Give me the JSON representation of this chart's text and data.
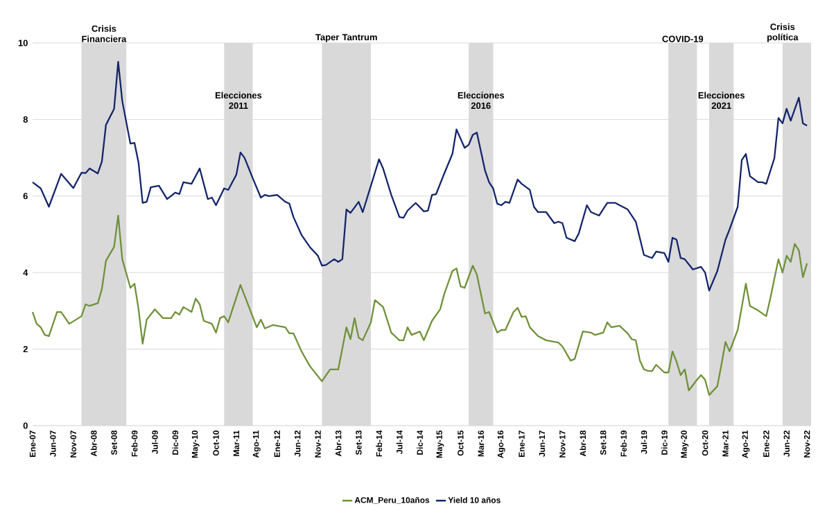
{
  "chart_data": {
    "type": "line",
    "xlim": [
      "2007-01",
      "2022-12"
    ],
    "ylim": [
      0,
      10
    ],
    "yticks": [
      0,
      2,
      4,
      6,
      8,
      10
    ],
    "xticks": [
      {
        "value": "2007-01",
        "label": "Ene-07"
      },
      {
        "value": "2007-06",
        "label": "Jun-07"
      },
      {
        "value": "2007-11",
        "label": "Nov-07"
      },
      {
        "value": "2008-04",
        "label": "Abr-08"
      },
      {
        "value": "2008-09",
        "label": "Set-08"
      },
      {
        "value": "2009-02",
        "label": "Feb-09"
      },
      {
        "value": "2009-07",
        "label": "Jul-09"
      },
      {
        "value": "2009-12",
        "label": "Dic-09"
      },
      {
        "value": "2010-05",
        "label": "May-10"
      },
      {
        "value": "2010-10",
        "label": "Oct-10"
      },
      {
        "value": "2011-03",
        "label": "Mar-11"
      },
      {
        "value": "2011-08",
        "label": "Ago-11"
      },
      {
        "value": "2012-01",
        "label": "Ene-12"
      },
      {
        "value": "2012-06",
        "label": "Jun-12"
      },
      {
        "value": "2012-11",
        "label": "Nov-12"
      },
      {
        "value": "2013-04",
        "label": "Abr-13"
      },
      {
        "value": "2013-09",
        "label": "Set-13"
      },
      {
        "value": "2014-02",
        "label": "Feb-14"
      },
      {
        "value": "2014-07",
        "label": "Jul-14"
      },
      {
        "value": "2014-12",
        "label": "Dic-14"
      },
      {
        "value": "2015-05",
        "label": "May-15"
      },
      {
        "value": "2015-10",
        "label": "Oct-15"
      },
      {
        "value": "2016-03",
        "label": "Mar-16"
      },
      {
        "value": "2016-08",
        "label": "Ago-16"
      },
      {
        "value": "2017-01",
        "label": "Ene-17"
      },
      {
        "value": "2017-06",
        "label": "Jun-17"
      },
      {
        "value": "2017-11",
        "label": "Nov-17"
      },
      {
        "value": "2018-04",
        "label": "Abr-18"
      },
      {
        "value": "2018-09",
        "label": "Set-18"
      },
      {
        "value": "2019-02",
        "label": "Feb-19"
      },
      {
        "value": "2019-07",
        "label": "Jul-19"
      },
      {
        "value": "2019-12",
        "label": "Dic-19"
      },
      {
        "value": "2020-05",
        "label": "May-20"
      },
      {
        "value": "2020-10",
        "label": "Oct-20"
      },
      {
        "value": "2021-03",
        "label": "Mar-21"
      },
      {
        "value": "2021-08",
        "label": "Ago-21"
      },
      {
        "value": "2022-01",
        "label": "Ene-22"
      },
      {
        "value": "2022-06",
        "label": "Jun-22"
      },
      {
        "value": "2022-11",
        "label": "Nov-22"
      }
    ],
    "grid": "y",
    "legend": "bottom",
    "marker": "none",
    "bands": [
      {
        "axis": "x",
        "from": "2008-01",
        "to": "2008-12",
        "label": "Crisis Financiera",
        "color": "#d9d9d9"
      },
      {
        "axis": "x",
        "from": "2010-12",
        "to": "2011-07",
        "label": "Elecciones 2011",
        "color": "#d9d9d9"
      },
      {
        "axis": "x",
        "from": "2012-12",
        "to": "2013-12",
        "label": "Taper Tantrum",
        "color": "#d9d9d9"
      },
      {
        "axis": "x",
        "from": "2015-12",
        "to": "2016-06",
        "label": "Elecciones 2016",
        "color": "#d9d9d9"
      },
      {
        "axis": "x",
        "from": "2020-01",
        "to": "2020-08",
        "label": "COVID-19",
        "color": "#d9d9d9"
      },
      {
        "axis": "x",
        "from": "2020-11",
        "to": "2021-05",
        "label": "Elecciones 2021",
        "color": "#d9d9d9"
      },
      {
        "axis": "x",
        "from": "2022-05",
        "to": "2022-12",
        "label": "Crisis política",
        "color": "#d9d9d9"
      }
    ],
    "series": [
      {
        "name": "ACM_Peru_10años",
        "color": "#6f9138",
        "x": [
          "2007-01",
          "2007-02",
          "2007-03",
          "2007-04",
          "2007-05",
          "2007-07",
          "2007-08",
          "2007-10",
          "2008-01",
          "2008-02",
          "2008-03",
          "2008-05",
          "2008-06",
          "2008-07",
          "2008-09",
          "2008-10",
          "2008-11",
          "2009-01",
          "2009-02",
          "2009-03",
          "2009-04",
          "2009-05",
          "2009-07",
          "2009-09",
          "2009-11",
          "2009-12",
          "2010-01",
          "2010-02",
          "2010-04",
          "2010-05",
          "2010-06",
          "2010-07",
          "2010-09",
          "2010-10",
          "2010-11",
          "2010-12",
          "2011-01",
          "2011-04",
          "2011-08",
          "2011-09",
          "2011-10",
          "2011-12",
          "2012-03",
          "2012-04",
          "2012-05",
          "2012-07",
          "2012-09",
          "2012-12",
          "2013-02",
          "2013-04",
          "2013-06",
          "2013-07",
          "2013-08",
          "2013-09",
          "2013-10",
          "2013-12",
          "2014-01",
          "2014-03",
          "2014-05",
          "2014-07",
          "2014-08",
          "2014-09",
          "2014-10",
          "2014-12",
          "2015-01",
          "2015-03",
          "2015-05",
          "2015-06",
          "2015-08",
          "2015-09",
          "2015-10",
          "2015-11",
          "2016-01",
          "2016-02",
          "2016-04",
          "2016-05",
          "2016-07",
          "2016-08",
          "2016-09",
          "2016-11",
          "2016-12",
          "2017-01",
          "2017-02",
          "2017-03",
          "2017-05",
          "2017-07",
          "2017-10",
          "2017-11",
          "2018-01",
          "2018-02",
          "2018-04",
          "2018-06",
          "2018-07",
          "2018-09",
          "2018-10",
          "2018-11",
          "2019-01",
          "2019-03",
          "2019-04",
          "2019-05",
          "2019-06",
          "2019-07",
          "2019-08",
          "2019-09",
          "2019-10",
          "2019-12",
          "2020-01",
          "2020-02",
          "2020-03",
          "2020-04",
          "2020-05",
          "2020-06",
          "2020-08",
          "2020-09",
          "2020-10",
          "2020-11",
          "2021-01",
          "2021-02",
          "2021-03",
          "2021-04",
          "2021-06",
          "2021-07",
          "2021-08",
          "2021-09",
          "2021-11",
          "2022-01",
          "2022-02",
          "2022-04",
          "2022-05",
          "2022-06",
          "2022-07",
          "2022-08",
          "2022-09",
          "2022-10",
          "2022-11"
        ],
        "values": [
          2.97,
          2.66,
          2.57,
          2.37,
          2.34,
          2.97,
          2.97,
          2.66,
          2.86,
          3.17,
          3.13,
          3.2,
          3.57,
          4.31,
          4.67,
          5.49,
          4.35,
          3.6,
          3.71,
          3.04,
          2.14,
          2.77,
          3.04,
          2.81,
          2.81,
          2.97,
          2.9,
          3.1,
          2.97,
          3.32,
          3.17,
          2.74,
          2.66,
          2.43,
          2.81,
          2.86,
          2.7,
          3.68,
          2.57,
          2.77,
          2.54,
          2.63,
          2.57,
          2.41,
          2.41,
          1.94,
          1.56,
          1.16,
          1.47,
          1.47,
          2.57,
          2.26,
          2.81,
          2.3,
          2.23,
          2.7,
          3.28,
          3.1,
          2.43,
          2.23,
          2.23,
          2.57,
          2.37,
          2.46,
          2.23,
          2.74,
          3.04,
          3.44,
          4.04,
          4.11,
          3.64,
          3.6,
          4.18,
          3.95,
          2.93,
          2.97,
          2.43,
          2.5,
          2.5,
          2.97,
          3.08,
          2.84,
          2.86,
          2.57,
          2.34,
          2.23,
          2.17,
          2.07,
          1.7,
          1.74,
          2.46,
          2.43,
          2.37,
          2.43,
          2.7,
          2.57,
          2.61,
          2.41,
          2.26,
          2.23,
          1.7,
          1.47,
          1.43,
          1.43,
          1.59,
          1.39,
          1.39,
          1.94,
          1.67,
          1.32,
          1.47,
          0.92,
          1.2,
          1.32,
          1.2,
          0.8,
          1.03,
          1.59,
          2.19,
          1.94,
          2.5,
          3.1,
          3.71,
          3.13,
          3.01,
          2.86,
          3.33,
          4.35,
          4.0,
          4.44,
          4.28,
          4.75,
          4.58,
          3.88,
          4.24
        ]
      },
      {
        "name": "Yield 10 años",
        "color": "#13246b",
        "x": [
          "2007-01",
          "2007-03",
          "2007-05",
          "2007-08",
          "2007-11",
          "2008-01",
          "2008-02",
          "2008-03",
          "2008-05",
          "2008-06",
          "2008-07",
          "2008-09",
          "2008-10",
          "2008-11",
          "2009-01",
          "2009-02",
          "2009-03",
          "2009-04",
          "2009-05",
          "2009-06",
          "2009-08",
          "2009-10",
          "2009-12",
          "2010-01",
          "2010-02",
          "2010-04",
          "2010-06",
          "2010-08",
          "2010-09",
          "2010-10",
          "2010-12",
          "2011-01",
          "2011-03",
          "2011-04",
          "2011-05",
          "2011-07",
          "2011-09",
          "2011-10",
          "2011-11",
          "2012-01",
          "2012-03",
          "2012-04",
          "2012-05",
          "2012-07",
          "2012-09",
          "2012-11",
          "2012-12",
          "2013-01",
          "2013-03",
          "2013-04",
          "2013-05",
          "2013-06",
          "2013-07",
          "2013-09",
          "2013-10",
          "2013-12",
          "2014-02",
          "2014-03",
          "2014-05",
          "2014-07",
          "2014-08",
          "2014-09",
          "2014-11",
          "2015-01",
          "2015-02",
          "2015-03",
          "2015-04",
          "2015-06",
          "2015-08",
          "2015-09",
          "2015-11",
          "2015-12",
          "2016-01",
          "2016-02",
          "2016-04",
          "2016-05",
          "2016-06",
          "2016-07",
          "2016-08",
          "2016-09",
          "2016-10",
          "2016-12",
          "2017-01",
          "2017-03",
          "2017-04",
          "2017-05",
          "2017-07",
          "2017-09",
          "2017-10",
          "2017-11",
          "2017-12",
          "2018-02",
          "2018-03",
          "2018-05",
          "2018-06",
          "2018-08",
          "2018-10",
          "2018-12",
          "2019-01",
          "2019-03",
          "2019-05",
          "2019-07",
          "2019-09",
          "2019-10",
          "2019-12",
          "2020-01",
          "2020-02",
          "2020-03",
          "2020-04",
          "2020-05",
          "2020-07",
          "2020-09",
          "2020-10",
          "2020-11",
          "2021-01",
          "2021-03",
          "2021-04",
          "2021-06",
          "2021-07",
          "2021-08",
          "2021-09",
          "2021-11",
          "2021-12",
          "2022-01",
          "2022-03",
          "2022-04",
          "2022-05",
          "2022-06",
          "2022-07",
          "2022-09",
          "2022-10",
          "2022-11"
        ],
        "values": [
          6.36,
          6.2,
          5.72,
          6.58,
          6.21,
          6.61,
          6.6,
          6.72,
          6.59,
          6.9,
          7.86,
          8.28,
          9.51,
          8.48,
          7.37,
          7.39,
          6.87,
          5.82,
          5.85,
          6.23,
          6.27,
          5.92,
          6.09,
          6.05,
          6.36,
          6.32,
          6.72,
          5.92,
          5.96,
          5.76,
          6.2,
          6.16,
          6.56,
          7.14,
          7.0,
          6.47,
          5.96,
          6.03,
          6.0,
          6.03,
          5.85,
          5.8,
          5.45,
          4.98,
          4.67,
          4.44,
          4.18,
          4.2,
          4.35,
          4.28,
          4.35,
          5.65,
          5.56,
          5.85,
          5.58,
          6.27,
          6.96,
          6.72,
          6.03,
          5.45,
          5.43,
          5.62,
          5.82,
          5.6,
          5.62,
          6.03,
          6.05,
          6.59,
          7.1,
          7.74,
          7.26,
          7.34,
          7.6,
          7.66,
          6.67,
          6.36,
          6.2,
          5.8,
          5.76,
          5.85,
          5.82,
          6.43,
          6.32,
          6.16,
          5.72,
          5.58,
          5.58,
          5.29,
          5.33,
          5.29,
          4.91,
          4.82,
          5.02,
          5.76,
          5.58,
          5.49,
          5.82,
          5.82,
          5.76,
          5.65,
          5.33,
          4.46,
          4.38,
          4.55,
          4.51,
          4.28,
          4.91,
          4.86,
          4.38,
          4.35,
          4.08,
          4.15,
          4.0,
          3.53,
          4.04,
          4.86,
          5.13,
          5.72,
          6.94,
          7.1,
          6.52,
          6.36,
          6.36,
          6.32,
          6.99,
          8.04,
          7.9,
          8.28,
          7.97,
          8.57,
          7.9,
          7.84
        ]
      }
    ]
  }
}
